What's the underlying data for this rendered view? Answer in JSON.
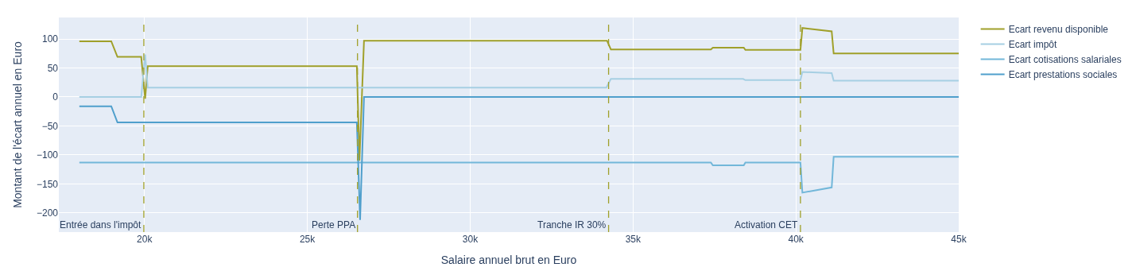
{
  "chart_data": {
    "type": "line",
    "xlabel": "Salaire annuel brut en Euro",
    "ylabel": "Montant de l'écart annuel en Euro",
    "xlim": [
      17370,
      45000
    ],
    "ylim": [
      -233,
      137
    ],
    "xticks": [
      {
        "value": 20000,
        "label": "20k"
      },
      {
        "value": 25000,
        "label": "25k"
      },
      {
        "value": 30000,
        "label": "30k"
      },
      {
        "value": 35000,
        "label": "35k"
      },
      {
        "value": 40000,
        "label": "40k"
      },
      {
        "value": 45000,
        "label": "45k"
      }
    ],
    "yticks": [
      {
        "value": -200,
        "label": "−200"
      },
      {
        "value": -150,
        "label": "−150"
      },
      {
        "value": -100,
        "label": "−100"
      },
      {
        "value": -50,
        "label": "−50"
      },
      0,
      50,
      100
    ],
    "grid": true,
    "legend": "top right",
    "line_style": "solid",
    "series": [
      {
        "name": "Ecart revenu disponible",
        "color": "#a0a02a",
        "x": [
          18000,
          18980,
          19170,
          19900,
          20020,
          20100,
          26520,
          26600,
          26740,
          34200,
          34320,
          37390,
          37450,
          38400,
          38450,
          40140,
          40200,
          41100,
          41160,
          45000
        ],
        "values": [
          96,
          96,
          69,
          69,
          -3,
          53,
          53,
          -110,
          97,
          97,
          82,
          82,
          85,
          85,
          81,
          81,
          119,
          113,
          75,
          75
        ]
      },
      {
        "name": "Ecart impôt",
        "color": "#a6cfe3",
        "x": [
          18000,
          19900,
          20020,
          20100,
          34180,
          34320,
          38380,
          38450,
          40140,
          40200,
          41100,
          41160,
          45000
        ],
        "values": [
          0,
          0,
          73,
          16,
          16,
          31,
          31,
          29,
          29,
          43,
          41,
          28,
          28
        ]
      },
      {
        "name": "Ecart cotisations salariales",
        "color": "#72b7d9",
        "x": [
          18000,
          37390,
          37450,
          38400,
          38450,
          40140,
          40200,
          41100,
          41160,
          45000
        ],
        "values": [
          -113,
          -113,
          -118,
          -118,
          -113,
          -113,
          -165,
          -156,
          -103,
          -103
        ]
      },
      {
        "name": "Ecart prestations sociales",
        "color": "#4f9fcc",
        "x": [
          18000,
          18980,
          19170,
          26520,
          26620,
          26740,
          45000
        ],
        "values": [
          -16,
          -16,
          -44,
          -44,
          -212,
          0,
          0
        ]
      }
    ],
    "ref_lines": [
      {
        "axis": "x",
        "value": 19980,
        "label": "Entrée dans l'impôt",
        "color": "#a0a02a",
        "line_style": "dashed"
      },
      {
        "axis": "x",
        "value": 26540,
        "label": "Perte PPA",
        "color": "#a0a02a",
        "line_style": "dashed"
      },
      {
        "axis": "x",
        "value": 34250,
        "label": "Tranche IR 30%",
        "color": "#a0a02a",
        "line_style": "dashed"
      },
      {
        "axis": "x",
        "value": 40140,
        "label": "Activation CET",
        "color": "#a0a02a",
        "line_style": "dashed"
      }
    ]
  }
}
